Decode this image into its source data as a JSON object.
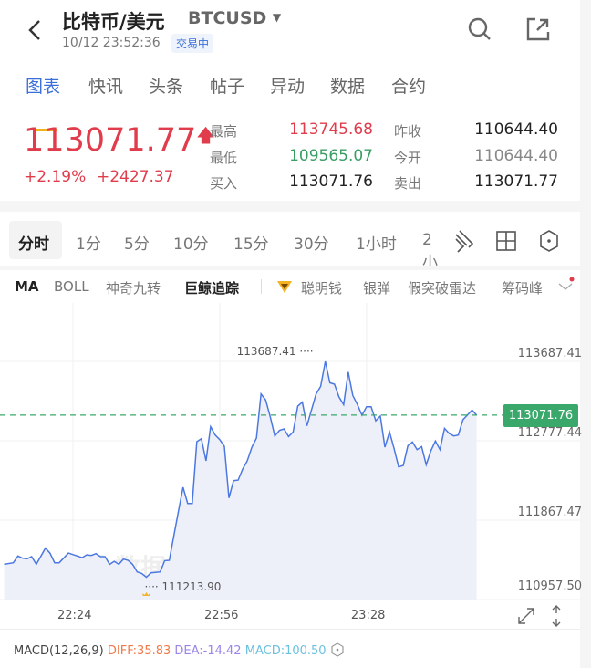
{
  "header": {
    "title": "比特币/美元",
    "symbol": "BTCUSD",
    "datetime": "10/12 23:52:36",
    "status": "交易中"
  },
  "tabs": [
    {
      "label": "图表",
      "active": true
    },
    {
      "label": "快讯"
    },
    {
      "label": "头条"
    },
    {
      "label": "帖子"
    },
    {
      "label": "异动"
    },
    {
      "label": "数据"
    },
    {
      "label": "合约"
    }
  ],
  "quote": {
    "price": "113071.77",
    "change_pct": "+2.19%",
    "change": "+2427.37",
    "stats": [
      {
        "label": "最高",
        "value": "113745.68"
      },
      {
        "label": "昨收",
        "value": "110644.40"
      },
      {
        "label": "最低",
        "value": "109565.07"
      },
      {
        "label": "今开",
        "value": "110644.40"
      },
      {
        "label": "买入",
        "value": "113071.76"
      },
      {
        "label": "卖出",
        "value": "113071.77"
      }
    ]
  },
  "periods": [
    "分时",
    "1分",
    "5分",
    "10分",
    "15分",
    "30分",
    "1小时",
    "2小"
  ],
  "indicators": [
    "MA",
    "BOLL",
    "神奇九转",
    "巨鲸追踪",
    "聪明钱",
    "银弹",
    "假突破雷达",
    "筹码峰"
  ],
  "colors": {
    "up": "#e03c4c",
    "down": "#3a9e64",
    "accent": "#3b6fd9",
    "line": "#4b78e0",
    "tag": "#3aa86a"
  },
  "watermark": "金十数据",
  "chart_data": {
    "type": "area",
    "y_ticks": [
      "113687.41",
      "112777.44",
      "111867.47",
      "110957.50"
    ],
    "ylim": [
      110957.5,
      113687.41
    ],
    "x_ticks": [
      "22:24",
      "22:56",
      "23:28"
    ],
    "high_label": "113687.41",
    "low_label": "111213.90",
    "last_label": "113071.76",
    "points": [
      [
        "22:09",
        111361
      ],
      [
        "22:11",
        111379
      ],
      [
        "22:12",
        111456
      ],
      [
        "22:13",
        111431
      ],
      [
        "22:14",
        111424
      ],
      [
        "22:15",
        111449
      ],
      [
        "22:16",
        111361
      ],
      [
        "22:18",
        111546
      ],
      [
        "22:19",
        111490
      ],
      [
        "22:20",
        111379
      ],
      [
        "22:21",
        111379
      ],
      [
        "22:23",
        111490
      ],
      [
        "22:26",
        111438
      ],
      [
        "22:27",
        111470
      ],
      [
        "22:28",
        111463
      ],
      [
        "22:29",
        111484
      ],
      [
        "22:30",
        111449
      ],
      [
        "22:31",
        111449
      ],
      [
        "22:32",
        111361
      ],
      [
        "22:33",
        111396
      ],
      [
        "22:34",
        111361
      ],
      [
        "22:35",
        111421
      ],
      [
        "22:36",
        111407
      ],
      [
        "22:37",
        111361
      ],
      [
        "22:38",
        111274
      ],
      [
        "22:39",
        111257
      ],
      [
        "22:40",
        111213.9
      ],
      [
        "22:41",
        111264
      ],
      [
        "22:43",
        111274
      ],
      [
        "22:44",
        111403
      ],
      [
        "22:45",
        111407
      ],
      [
        "22:46",
        111693
      ],
      [
        "22:47",
        111972
      ],
      [
        "22:48",
        112244
      ],
      [
        "22:49",
        112059
      ],
      [
        "22:50",
        112059
      ],
      [
        "22:51",
        112767
      ],
      [
        "22:52",
        112802
      ],
      [
        "22:53",
        112547
      ],
      [
        "22:54",
        112938
      ],
      [
        "22:55",
        112843
      ],
      [
        "22:56",
        112790
      ],
      [
        "22:57",
        112714
      ],
      [
        "22:58",
        112122
      ],
      [
        "22:59",
        112320
      ],
      [
        "23:00",
        112327
      ],
      [
        "23:01",
        112453
      ],
      [
        "23:02",
        112547
      ],
      [
        "23:03",
        112704
      ],
      [
        "23:04",
        112809
      ],
      [
        "23:05",
        113314
      ],
      [
        "23:06",
        113244
      ],
      [
        "23:07",
        113053
      ],
      [
        "23:08",
        112833
      ],
      [
        "23:09",
        112896
      ],
      [
        "23:10",
        112913
      ],
      [
        "23:11",
        112826
      ],
      [
        "23:12",
        112878
      ],
      [
        "23:13",
        113175
      ],
      [
        "23:14",
        113220
      ],
      [
        "23:15",
        112948
      ],
      [
        "23:17",
        113314
      ],
      [
        "23:18",
        113401
      ],
      [
        "23:19",
        113687.41
      ],
      [
        "23:20",
        113443
      ],
      [
        "23:21",
        113426
      ],
      [
        "23:22",
        113279
      ],
      [
        "23:23",
        113192
      ],
      [
        "23:24",
        113565
      ],
      [
        "23:25",
        113297
      ],
      [
        "23:26",
        113192
      ],
      [
        "23:27",
        113070
      ],
      [
        "23:28",
        113168
      ],
      [
        "23:29",
        113168
      ],
      [
        "23:30",
        113007
      ],
      [
        "23:31",
        113060
      ],
      [
        "23:32",
        112704
      ],
      [
        "23:33",
        112878
      ],
      [
        "23:34",
        112687
      ],
      [
        "23:35",
        112477
      ],
      [
        "23:36",
        112495
      ],
      [
        "23:37",
        112721
      ],
      [
        "23:38",
        112763
      ],
      [
        "23:39",
        112676
      ],
      [
        "23:40",
        112711
      ],
      [
        "23:41",
        112502
      ],
      [
        "23:42",
        112659
      ],
      [
        "23:43",
        112774
      ],
      [
        "23:44",
        112676
      ],
      [
        "23:45",
        112920
      ],
      [
        "23:46",
        112861
      ],
      [
        "23:47",
        112833
      ],
      [
        "23:48",
        112843
      ],
      [
        "23:49",
        113018
      ],
      [
        "23:51",
        113129
      ],
      [
        "23:52",
        113071.76
      ]
    ]
  },
  "macd": {
    "name": "MACD(12,26,9)",
    "diff": "DIFF:35.83",
    "dea": "DEA:-14.42",
    "macd": "MACD:100.50"
  }
}
